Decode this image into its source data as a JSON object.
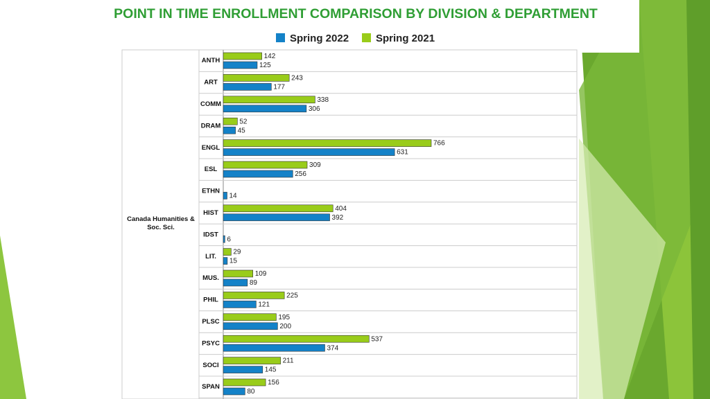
{
  "chart_data": {
    "type": "hbar",
    "title": "POINT IN TIME ENROLLMENT COMPARISON BY DIVISION & DEPARTMENT",
    "division": "Canada Humanities & Soc. Sci.",
    "categories": [
      "ANTH",
      "ART",
      "COMM",
      "DRAM",
      "ENGL",
      "ESL",
      "ETHN",
      "HIST",
      "IDST",
      "LIT.",
      "MUS.",
      "PHIL",
      "PLSC",
      "PSYC",
      "SOCI",
      "SPAN"
    ],
    "series": [
      {
        "name": "Spring 2022",
        "color": "#1482c8",
        "values": [
          125,
          177,
          306,
          45,
          631,
          256,
          14,
          392,
          6,
          15,
          89,
          121,
          200,
          374,
          145,
          80
        ]
      },
      {
        "name": "Spring 2021",
        "color": "#99cc1a",
        "values": [
          142,
          243,
          338,
          52,
          766,
          309,
          null,
          404,
          null,
          29,
          109,
          225,
          195,
          537,
          211,
          156
        ]
      }
    ]
  }
}
